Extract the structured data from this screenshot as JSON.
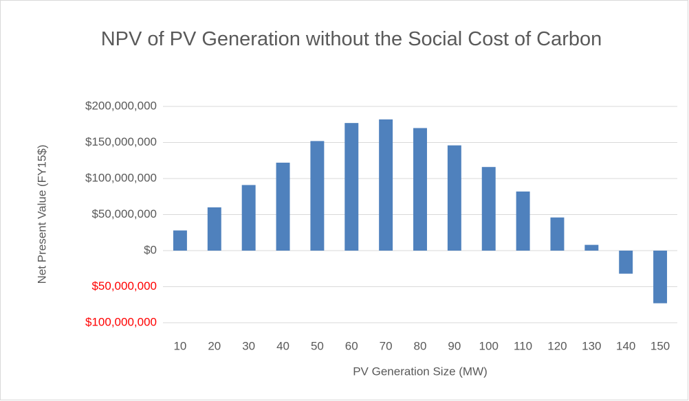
{
  "chart_data": {
    "type": "bar",
    "title": "NPV of PV Generation without the Social Cost of Carbon",
    "x_label": "PV Generation Size (MW)",
    "y_label": "Net Present Value (FY15$)",
    "categories": [
      "10",
      "20",
      "30",
      "40",
      "50",
      "60",
      "70",
      "80",
      "90",
      "100",
      "110",
      "120",
      "130",
      "140",
      "150"
    ],
    "values": [
      28000000,
      60000000,
      91000000,
      122000000,
      152000000,
      177000000,
      182000000,
      170000000,
      146000000,
      116000000,
      82000000,
      46000000,
      8000000,
      -32000000,
      -73000000
    ],
    "color": "#4f81bd",
    "ylim": [
      -100000000,
      200000000
    ],
    "yticks": [
      {
        "value": -100000000,
        "label": "$100,000,000"
      },
      {
        "value": -50000000,
        "label": "$50,000,000"
      },
      {
        "value": 0,
        "label": "$0"
      },
      {
        "value": 50000000,
        "label": "$50,000,000"
      },
      {
        "value": 100000000,
        "label": "$100,000,000"
      },
      {
        "value": 150000000,
        "label": "$150,000,000"
      },
      {
        "value": 200000000,
        "label": "$200,000,000"
      }
    ],
    "negative_tick_color": "#ff0000",
    "grid": true
  }
}
